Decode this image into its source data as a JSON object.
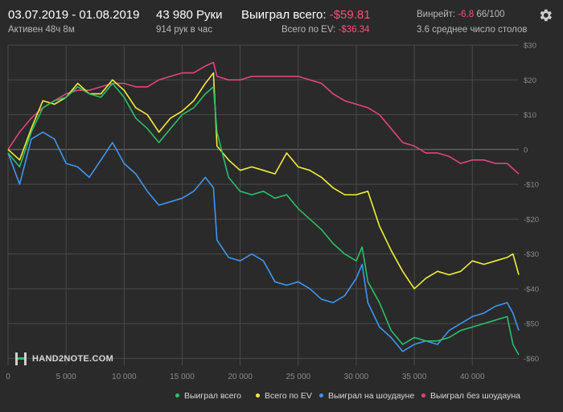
{
  "header": {
    "date_range": "03.07.2019 - 01.08.2019",
    "active": "Активен 48ч 8м",
    "hands": "43 980 Руки",
    "hands_per_hour": "914 рук в час",
    "won_total_label": "Выиграл всего:",
    "won_total_value": "-$59.81",
    "ev_label": "Всего по EV:",
    "ev_value": "-$36.34",
    "winrate_label": "Винрейт:",
    "winrate_value": "-6.8",
    "winrate_suffix": "66/100",
    "tables": "3.6 среднее число столов"
  },
  "logo": {
    "text": "HAND2NOTE.COM"
  },
  "colors": {
    "won_total": "#2bbf6a",
    "ev": "#f2ee3a",
    "showdown": "#3f96f0",
    "non_showdown": "#e0457f",
    "negative": "#ff4d7a",
    "grid": "#4a4a4a",
    "zero_line": "#777777",
    "tick_label": "#8a8a8a"
  },
  "icons": {
    "settings": "gear-icon",
    "logo": "hand2note-logo-icon"
  },
  "chart_data": {
    "type": "line",
    "xlim": [
      0,
      44000
    ],
    "ylim": [
      -62,
      30
    ],
    "x_ticks": [
      0,
      5000,
      10000,
      15000,
      20000,
      25000,
      30000,
      35000,
      40000
    ],
    "x_tick_labels": [
      "0",
      "5 000",
      "10 000",
      "15 000",
      "20 000",
      "25 000",
      "30 000",
      "35 000",
      "40 000"
    ],
    "y_ticks": [
      30,
      20,
      10,
      0,
      -10,
      -20,
      -30,
      -40,
      -50,
      -60
    ],
    "y_tick_labels": [
      "$30",
      "$20",
      "$10",
      "0",
      "-$10",
      "-$20",
      "-$30",
      "-$40",
      "-$50",
      "-$60"
    ],
    "grid": true,
    "legend_position": "bottom",
    "series": [
      {
        "name": "Выиграл всего",
        "x": [
          0,
          1000,
          2000,
          3000,
          4000,
          5000,
          6000,
          7000,
          8000,
          9000,
          10000,
          11000,
          12000,
          13000,
          14000,
          15000,
          16000,
          17000,
          17700,
          18000,
          19000,
          20000,
          21000,
          22000,
          23000,
          24000,
          25000,
          26000,
          27000,
          28000,
          29000,
          30000,
          30500,
          31000,
          32000,
          33000,
          34000,
          35000,
          36000,
          37000,
          38000,
          39000,
          40000,
          41000,
          42000,
          43000,
          43500,
          44000
        ],
        "values": [
          -1,
          -5,
          5,
          12,
          14,
          15,
          18,
          16,
          15,
          19,
          15,
          9,
          6,
          2,
          6,
          10,
          12,
          16,
          18,
          5,
          -8,
          -12,
          -13,
          -12,
          -14,
          -13,
          -17,
          -20,
          -23,
          -27,
          -30,
          -32,
          -28,
          -38,
          -44,
          -52,
          -56,
          -54,
          -55,
          -55,
          -54,
          -52,
          -51,
          -50,
          -49,
          -48,
          -56,
          -59
        ]
      },
      {
        "name": "Всего по EV",
        "x": [
          0,
          1000,
          2000,
          3000,
          4000,
          5000,
          6000,
          7000,
          8000,
          9000,
          10000,
          11000,
          12000,
          13000,
          14000,
          15000,
          16000,
          17000,
          17700,
          18000,
          19000,
          20000,
          21000,
          22000,
          23000,
          24000,
          25000,
          26000,
          27000,
          28000,
          29000,
          30000,
          31000,
          32000,
          33000,
          34000,
          35000,
          36000,
          37000,
          38000,
          39000,
          40000,
          41000,
          42000,
          43000,
          43500,
          44000
        ],
        "values": [
          0,
          -3,
          6,
          14,
          13,
          15,
          19,
          16,
          16,
          20,
          17,
          12,
          10,
          5,
          9,
          11,
          14,
          19,
          22,
          1,
          -3,
          -6,
          -5,
          -6,
          -7,
          -1,
          -5,
          -6,
          -8,
          -11,
          -13,
          -13,
          -12,
          -22,
          -29,
          -35,
          -40,
          -37,
          -35,
          -36,
          -35,
          -32,
          -33,
          -32,
          -31,
          -30,
          -36
        ]
      },
      {
        "name": "Выиграл на шоудауне",
        "x": [
          0,
          1000,
          2000,
          3000,
          4000,
          5000,
          6000,
          7000,
          8000,
          9000,
          10000,
          11000,
          12000,
          13000,
          14000,
          15000,
          16000,
          17000,
          17700,
          18000,
          19000,
          20000,
          21000,
          22000,
          23000,
          24000,
          25000,
          26000,
          27000,
          28000,
          29000,
          30000,
          30500,
          31000,
          32000,
          33000,
          34000,
          35000,
          36000,
          37000,
          38000,
          39000,
          40000,
          41000,
          42000,
          43000,
          43500,
          44000
        ],
        "values": [
          -1,
          -10,
          3,
          5,
          3,
          -4,
          -5,
          -8,
          -3,
          2,
          -4,
          -7,
          -12,
          -16,
          -15,
          -14,
          -12,
          -8,
          -11,
          -26,
          -31,
          -32,
          -30,
          -32,
          -38,
          -39,
          -38,
          -40,
          -43,
          -44,
          -42,
          -37,
          -33,
          -44,
          -51,
          -54,
          -58,
          -56,
          -55,
          -56,
          -52,
          -50,
          -48,
          -47,
          -45,
          -44,
          -47,
          -52
        ]
      },
      {
        "name": "Выиграл без шоудауна",
        "x": [
          0,
          1000,
          2000,
          3000,
          4000,
          5000,
          6000,
          7000,
          8000,
          9000,
          10000,
          11000,
          12000,
          13000,
          14000,
          15000,
          16000,
          17000,
          17700,
          18000,
          19000,
          20000,
          21000,
          22000,
          23000,
          24000,
          25000,
          26000,
          27000,
          28000,
          29000,
          30000,
          31000,
          32000,
          33000,
          34000,
          35000,
          36000,
          37000,
          38000,
          39000,
          40000,
          41000,
          42000,
          43000,
          44000
        ],
        "values": [
          0,
          5,
          9,
          12,
          14,
          16,
          17,
          17,
          18,
          19,
          19,
          18,
          18,
          20,
          21,
          22,
          22,
          24,
          25,
          21,
          20,
          20,
          21,
          21,
          21,
          21,
          21,
          20,
          19,
          16,
          14,
          13,
          12,
          10,
          6,
          2,
          1,
          -1,
          -1,
          -2,
          -4,
          -3,
          -3,
          -4,
          -4,
          -7
        ]
      }
    ]
  },
  "legend": [
    {
      "label": "Выиграл всего",
      "color": "#2bbf6a"
    },
    {
      "label": "Всего по EV",
      "color": "#f2ee3a"
    },
    {
      "label": "Выиграл на шоудауне",
      "color": "#3f96f0"
    },
    {
      "label": "Выиграл без шоудауна",
      "color": "#e0457f"
    }
  ]
}
